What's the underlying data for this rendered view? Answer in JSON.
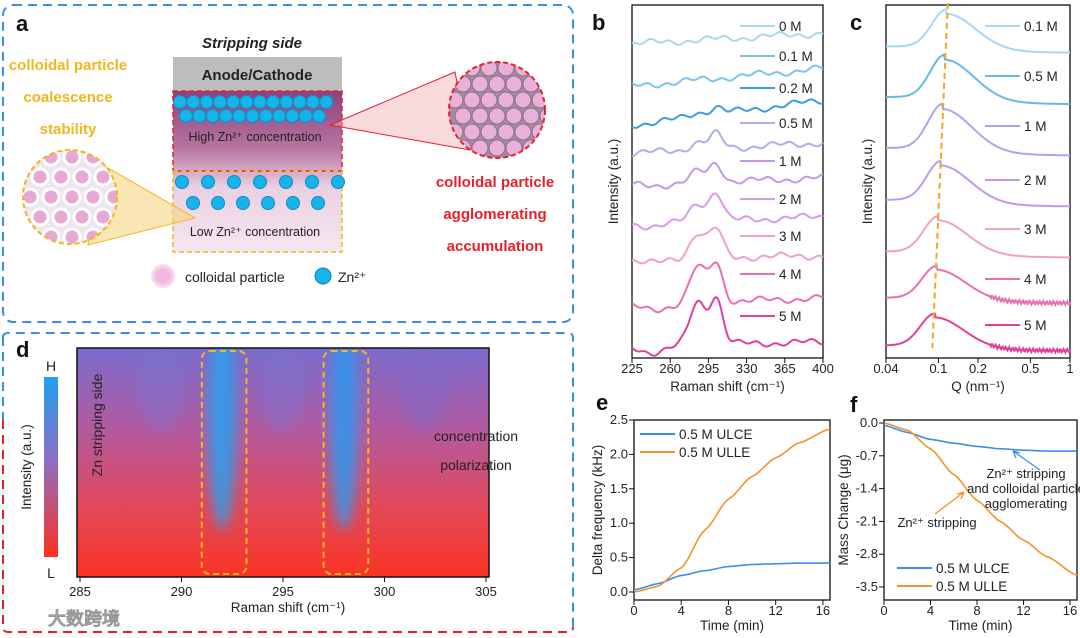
{
  "panel_a": {
    "label": "a",
    "title": "Stripping side",
    "electrode": "Anode/Cathode",
    "high_conc": "High Zn²⁺ concentration",
    "low_conc": "Low Zn²⁺ concentration",
    "left_text": [
      "colloidal particle",
      "coalescence",
      "stability"
    ],
    "right_text": [
      "colloidal particle",
      "agglomerating",
      "accumulation"
    ],
    "legend_particle": "colloidal particle",
    "legend_zn": "Zn²⁺",
    "colors": {
      "yellow": "#f2b61c",
      "red": "#e8202a",
      "cyan": "#16b4e8",
      "blue_dash": "#3b8ee8"
    }
  },
  "panel_d": {
    "label": "d",
    "colorbar_high": "H",
    "colorbar_low": "L",
    "colorbar_label": "Intensity (a.u.)",
    "side_text": "Zn stripping side",
    "annotation": [
      "concentration",
      "polarization"
    ],
    "xlabel": "Raman shift (cm⁻¹)",
    "xticks": [
      "285",
      "290",
      "295",
      "300",
      "305"
    ],
    "highlight_bands": [
      [
        291,
        293.2
      ],
      [
        297,
        299.2
      ]
    ]
  },
  "watermark": "大数跨境",
  "chart_data": [
    {
      "id": "b",
      "label": "b",
      "type": "line",
      "xlabel": "Raman shift (cm⁻¹)",
      "ylabel": "Intensity (a.u.)",
      "xlim": [
        225,
        400
      ],
      "ylim": [
        0,
        100
      ],
      "xticks": [
        "225",
        "260",
        "295",
        "330",
        "365",
        "400"
      ],
      "peak_positions": [
        285,
        302
      ],
      "series": [
        {
          "name": "0 M",
          "offset": 89,
          "peaks": [
            0,
            0
          ],
          "slope": 3,
          "color": "#a8d8f0"
        },
        {
          "name": "0.1 M",
          "offset": 77,
          "peaks": [
            0,
            0
          ],
          "slope": 5,
          "color": "#7ec3ec"
        },
        {
          "name": "0.2 M",
          "offset": 66,
          "peaks": [
            1,
            2
          ],
          "slope": 7,
          "color": "#3a9fe0"
        },
        {
          "name": "0.5 M",
          "offset": 58,
          "peaks": [
            2,
            4
          ],
          "slope": 3,
          "color": "#a8b0ee"
        },
        {
          "name": "1 M",
          "offset": 49,
          "peaks": [
            3,
            5
          ],
          "slope": 2,
          "color": "#c09ae8"
        },
        {
          "name": "2 M",
          "offset": 38,
          "peaks": [
            5,
            8
          ],
          "slope": 2,
          "color": "#d89ae8"
        },
        {
          "name": "3 M",
          "offset": 28,
          "peaks": [
            7,
            8
          ],
          "slope": 1,
          "color": "#f0a0d0"
        },
        {
          "name": "4 M",
          "offset": 15,
          "peaks": [
            10,
            11
          ],
          "slope": 2,
          "color": "#e870b0"
        },
        {
          "name": "5 M",
          "offset": 3.5,
          "peaks": [
            12,
            13
          ],
          "slope": 1,
          "color": "#e0409a"
        }
      ]
    },
    {
      "id": "c",
      "label": "c",
      "type": "line",
      "xlabel": "Q (nm⁻¹)",
      "ylabel": "Intensity (a.u.)",
      "xscale": "log",
      "xlim": [
        0.04,
        1
      ],
      "ylim": [
        0,
        100
      ],
      "xticks": [
        "0.04",
        "0.1",
        "0.2",
        "0.5",
        "1"
      ],
      "trend_line": {
        "from_q": 0.118,
        "to_q": 0.09,
        "color": "#f5a623"
      },
      "series": [
        {
          "name": "0.1 M",
          "offset": 87,
          "amp": 10.5,
          "peak_q": 0.115,
          "color": "#a8d8f0"
        },
        {
          "name": "0.5 M",
          "offset": 72.5,
          "amp": 12,
          "peak_q": 0.112,
          "color": "#6ab8e8"
        },
        {
          "name": "1 M",
          "offset": 58,
          "amp": 12.5,
          "peak_q": 0.108,
          "color": "#a8a8ee"
        },
        {
          "name": "2 M",
          "offset": 43.5,
          "amp": 11,
          "peak_q": 0.105,
          "color": "#c09ae8"
        },
        {
          "name": "3 M",
          "offset": 29,
          "amp": 10,
          "peak_q": 0.1,
          "color": "#f0a0c8"
        },
        {
          "name": "4 M",
          "offset": 16,
          "amp": 9,
          "peak_q": 0.097,
          "color": "#e870b0"
        },
        {
          "name": "5 M",
          "offset": 2.5,
          "amp": 9,
          "peak_q": 0.094,
          "color": "#e0409a"
        }
      ]
    },
    {
      "id": "e",
      "label": "e",
      "type": "line",
      "xlabel": "Time (min)",
      "ylabel": "Delta frequency (kHz)",
      "xlim": [
        0,
        16.6
      ],
      "ylim": [
        -0.1,
        2.5
      ],
      "xticks": [
        0,
        4,
        8,
        12,
        16
      ],
      "yticks": [
        "0.0",
        "0.5",
        "1.0",
        "1.5",
        "2.0",
        "2.5"
      ],
      "x": [
        0,
        2,
        4,
        6,
        8,
        10,
        12,
        14,
        16.6
      ],
      "series": [
        {
          "name": "0.5 M ULCE",
          "values": [
            0.03,
            0.12,
            0.24,
            0.31,
            0.37,
            0.4,
            0.41,
            0.42,
            0.42
          ],
          "color": "#3b8ee8"
        },
        {
          "name": "0.5 M ULLE",
          "values": [
            0,
            0.08,
            0.35,
            0.9,
            1.35,
            1.68,
            1.95,
            2.17,
            2.37
          ],
          "color": "#f5922a"
        }
      ]
    },
    {
      "id": "f",
      "label": "f",
      "type": "line",
      "xlabel": "Time (min)",
      "ylabel": "Mass Change (μg)",
      "xlim": [
        0,
        16.6
      ],
      "ylim": [
        -3.75,
        0.1
      ],
      "xticks": [
        0,
        4,
        8,
        12,
        16
      ],
      "yticks": [
        "0.0",
        "-0.7",
        "-1.4",
        "-2.1",
        "-2.8",
        "-3.5"
      ],
      "x": [
        0,
        2,
        4,
        6,
        8,
        10,
        12,
        14,
        16.6
      ],
      "series": [
        {
          "name": "0.5 M ULCE",
          "values": [
            -0.05,
            -0.2,
            -0.35,
            -0.43,
            -0.5,
            -0.55,
            -0.58,
            -0.6,
            -0.6
          ],
          "color": "#3b8ee8"
        },
        {
          "name": "0.5 M ULLE",
          "values": [
            0,
            -0.15,
            -0.55,
            -1.1,
            -1.65,
            -2.1,
            -2.5,
            -2.85,
            -3.25
          ],
          "color": "#f5922a"
        }
      ],
      "annotations": [
        {
          "lines": [
            "Zn²⁺ stripping",
            "and colloidal particle",
            "agglomerating"
          ],
          "color": "#3b8ee8"
        },
        {
          "lines": [
            "Zn²⁺ stripping"
          ],
          "color": "#f5922a"
        }
      ]
    }
  ]
}
